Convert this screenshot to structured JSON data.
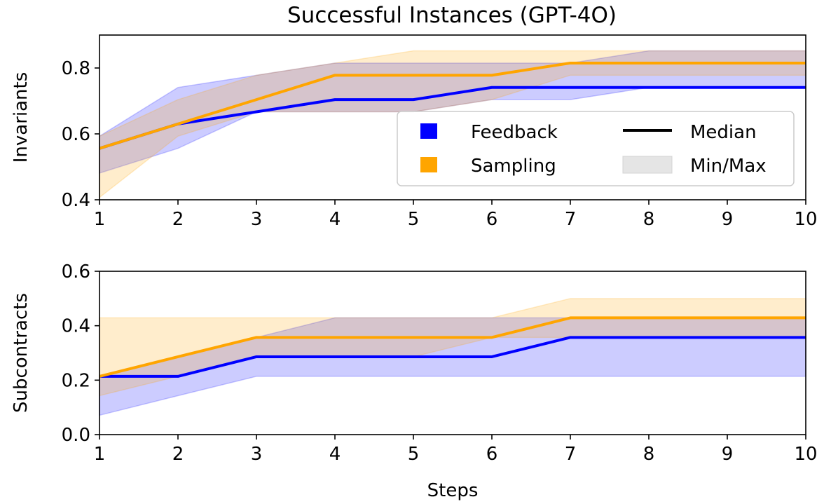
{
  "title": "Successful Instances (GPT-4O)",
  "legend": {
    "feedback": "Feedback",
    "sampling": "Sampling",
    "median": "Median",
    "minmax": "Min/Max"
  },
  "colors": {
    "feedback": "#0000ff",
    "sampling": "#ffa500",
    "legend_fill": "#e5e5e5"
  },
  "chart_data": [
    {
      "type": "line",
      "title": "Successful Instances (GPT-4O)",
      "ylabel": "Invariants",
      "xlabel": "",
      "x": [
        1,
        2,
        3,
        4,
        5,
        6,
        7,
        8,
        9,
        10
      ],
      "xlim": [
        1,
        10
      ],
      "ylim": [
        0.4,
        0.9
      ],
      "xticks": [
        "1",
        "2",
        "3",
        "4",
        "5",
        "6",
        "7",
        "8",
        "9",
        "10"
      ],
      "yticks": [
        {
          "value": 0.4,
          "label": "0.4"
        },
        {
          "value": 0.6,
          "label": "0.6"
        },
        {
          "value": 0.8,
          "label": "0.8"
        }
      ],
      "legend_position": "lower-right",
      "series": [
        {
          "name": "Feedback",
          "median": [
            0.556,
            0.63,
            0.667,
            0.704,
            0.704,
            0.741,
            0.741,
            0.741,
            0.741,
            0.741
          ],
          "min": [
            0.481,
            0.556,
            0.667,
            0.667,
            0.667,
            0.704,
            0.704,
            0.741,
            0.741,
            0.741
          ],
          "max": [
            0.593,
            0.741,
            0.778,
            0.815,
            0.815,
            0.815,
            0.815,
            0.852,
            0.852,
            0.852
          ]
        },
        {
          "name": "Sampling",
          "median": [
            0.556,
            0.63,
            0.704,
            0.778,
            0.778,
            0.778,
            0.815,
            0.815,
            0.815,
            0.815
          ],
          "min": [
            0.407,
            0.593,
            0.667,
            0.667,
            0.667,
            0.704,
            0.778,
            0.778,
            0.778,
            0.778
          ],
          "max": [
            0.593,
            0.704,
            0.778,
            0.815,
            0.852,
            0.852,
            0.852,
            0.852,
            0.852,
            0.852
          ]
        }
      ]
    },
    {
      "type": "line",
      "title": "",
      "ylabel": "Subcontracts",
      "xlabel": "Steps",
      "x": [
        1,
        2,
        3,
        4,
        5,
        6,
        7,
        8,
        9,
        10
      ],
      "xlim": [
        1,
        10
      ],
      "ylim": [
        0.0,
        0.6
      ],
      "xticks": [
        "1",
        "2",
        "3",
        "4",
        "5",
        "6",
        "7",
        "8",
        "9",
        "10"
      ],
      "yticks": [
        {
          "value": 0.0,
          "label": "0.0"
        },
        {
          "value": 0.2,
          "label": "0.2"
        },
        {
          "value": 0.4,
          "label": "0.4"
        },
        {
          "value": 0.6,
          "label": "0.6"
        }
      ],
      "series": [
        {
          "name": "Feedback",
          "median": [
            0.214,
            0.214,
            0.286,
            0.286,
            0.286,
            0.286,
            0.357,
            0.357,
            0.357,
            0.357
          ],
          "min": [
            0.071,
            0.143,
            0.214,
            0.214,
            0.214,
            0.214,
            0.214,
            0.214,
            0.214,
            0.214
          ],
          "max": [
            0.214,
            0.286,
            0.357,
            0.429,
            0.429,
            0.429,
            0.429,
            0.429,
            0.429,
            0.429
          ]
        },
        {
          "name": "Sampling",
          "median": [
            0.214,
            0.286,
            0.357,
            0.357,
            0.357,
            0.357,
            0.429,
            0.429,
            0.429,
            0.429
          ],
          "min": [
            0.143,
            0.214,
            0.286,
            0.286,
            0.286,
            0.357,
            0.357,
            0.357,
            0.357,
            0.357
          ],
          "max": [
            0.429,
            0.429,
            0.429,
            0.429,
            0.429,
            0.429,
            0.5,
            0.5,
            0.5,
            0.5
          ]
        }
      ]
    }
  ]
}
